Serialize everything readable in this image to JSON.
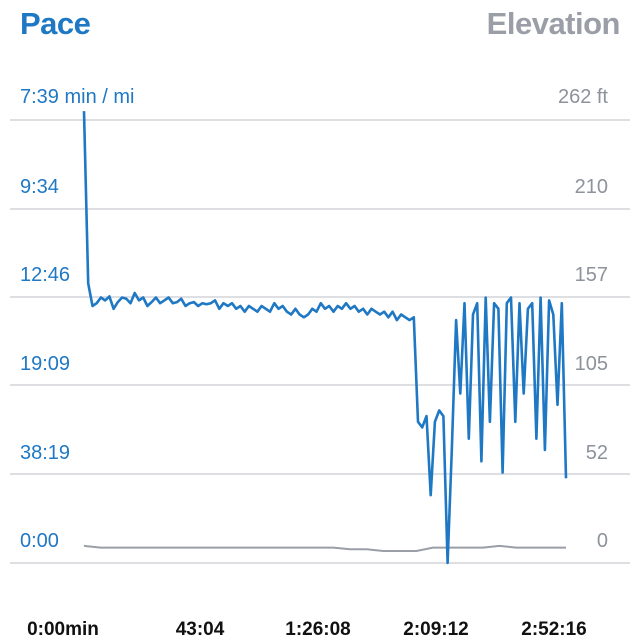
{
  "header": {
    "left_title": "Pace",
    "right_title": "Elevation"
  },
  "chart_data": {
    "type": "line",
    "title_left": "Pace",
    "title_right": "Elevation",
    "y_left_ticks": [
      "7:39 min / mi",
      "9:34",
      "12:46",
      "19:09",
      "38:19",
      "0:00"
    ],
    "y_right_ticks": [
      "262 ft",
      "210",
      "157",
      "105",
      "52",
      "0"
    ],
    "x_ticks": [
      "0:00min",
      "43:04",
      "1:26:08",
      "2:09:12",
      "2:52:16"
    ],
    "grid": true,
    "colors": {
      "pace": "#1f78c4",
      "elevation": "#9a9ea7",
      "grid": "#c9ccd2"
    },
    "series": [
      {
        "axis": "right",
        "x_range_minutes": [
          0,
          172.3
        ],
        "values_ft": [
          3,
          2,
          2,
          2,
          2,
          2,
          2,
          2,
          2,
          2,
          2,
          2,
          2,
          2,
          2,
          2,
          1,
          1,
          0,
          0,
          0,
          2,
          2,
          2,
          2,
          3,
          2,
          2,
          2,
          2
        ]
      },
      {
        "axis": "left",
        "x_range_minutes": [
          0,
          172.3
        ],
        "speed_mph": [
          8.0,
          4.95,
          4.55,
          4.6,
          4.7,
          4.65,
          4.72,
          4.5,
          4.62,
          4.7,
          4.68,
          4.6,
          4.78,
          4.65,
          4.7,
          4.55,
          4.62,
          4.7,
          4.6,
          4.65,
          4.7,
          4.6,
          4.62,
          4.68,
          4.55,
          4.6,
          4.62,
          4.55,
          4.6,
          4.58,
          4.6,
          4.65,
          4.5,
          4.6,
          4.55,
          4.6,
          4.5,
          4.55,
          4.45,
          4.55,
          4.5,
          4.45,
          4.55,
          4.5,
          4.45,
          4.6,
          4.5,
          4.55,
          4.45,
          4.4,
          4.5,
          4.4,
          4.35,
          4.4,
          4.5,
          4.45,
          4.6,
          4.5,
          4.55,
          4.45,
          4.55,
          4.5,
          4.6,
          4.5,
          4.55,
          4.45,
          4.5,
          4.4,
          4.5,
          4.45,
          4.4,
          4.45,
          4.35,
          4.45,
          4.3,
          4.4,
          4.35,
          4.3,
          4.35,
          2.5,
          2.4,
          2.6,
          1.2,
          2.5,
          2.7,
          2.6,
          0.0,
          2.0,
          4.3,
          3.0,
          4.6,
          2.2,
          4.4,
          4.6,
          1.8,
          4.7,
          2.5,
          4.6,
          4.5,
          1.6,
          4.6,
          4.7,
          2.5,
          4.6,
          3.0,
          4.5,
          4.6,
          2.2,
          4.7,
          2.0,
          4.65,
          4.4,
          2.8,
          4.6,
          1.5
        ]
      }
    ]
  }
}
